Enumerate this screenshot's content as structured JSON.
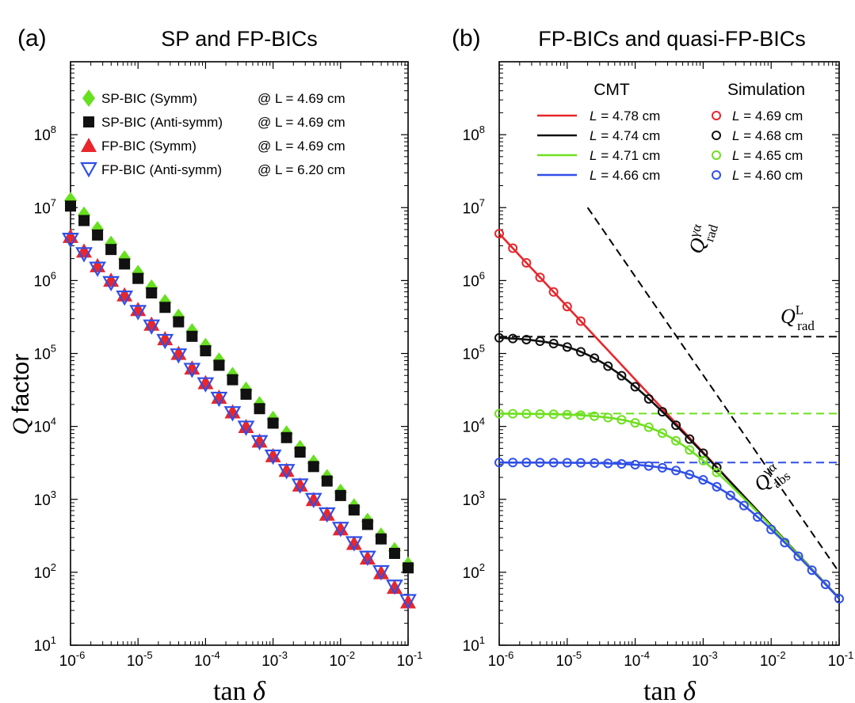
{
  "chart_data": [
    {
      "type": "scatter",
      "panel_label": "(a)",
      "title": "SP and FP-BICs",
      "xlabel": "tan δ",
      "ylabel": "Q factor",
      "xscale": "log",
      "yscale": "log",
      "xlim": [
        1e-06,
        0.1
      ],
      "ylim": [
        10,
        1000000000.0
      ],
      "x_ticks": [
        {
          "base": "10",
          "exp": "-6"
        },
        {
          "base": "10",
          "exp": "-5"
        },
        {
          "base": "10",
          "exp": "-4"
        },
        {
          "base": "10",
          "exp": "-3"
        },
        {
          "base": "10",
          "exp": "-2"
        },
        {
          "base": "10",
          "exp": "-1"
        }
      ],
      "y_ticks": [
        {
          "base": "10",
          "exp": "1"
        },
        {
          "base": "10",
          "exp": "2"
        },
        {
          "base": "10",
          "exp": "3"
        },
        {
          "base": "10",
          "exp": "4"
        },
        {
          "base": "10",
          "exp": "5"
        },
        {
          "base": "10",
          "exp": "6"
        },
        {
          "base": "10",
          "exp": "7"
        },
        {
          "base": "10",
          "exp": "8"
        }
      ],
      "legend_placement": "top-left",
      "series": [
        {
          "name": "SP-BIC (Symm)",
          "note": "@ L = 4.69 cm",
          "marker": "diamond",
          "color": "#66e01f",
          "x_range": [
            1e-06,
            0.1
          ],
          "q_at_start": 12500000,
          "q_at_end": 125
        },
        {
          "name": "SP-BIC (Anti-symm)",
          "note": "@ L = 4.69 cm",
          "marker": "square",
          "color": "#111111",
          "x_range": [
            1e-06,
            0.1
          ],
          "q_at_start": 10500000,
          "q_at_end": 115
        },
        {
          "name": "FP-BIC (Symm)",
          "note": "@ L = 4.69 cm",
          "marker": "triangle-up",
          "color": "#e8262b",
          "x_range": [
            1e-06,
            0.1
          ],
          "q_at_start": 4000000,
          "q_at_end": 39
        },
        {
          "name": "FP-BIC (Anti-symm)",
          "note": "@ L = 6.20 cm",
          "marker": "triangle-down",
          "color": "#2f4fe8",
          "x_range": [
            1e-06,
            0.1
          ],
          "q_at_start": 3600000,
          "q_at_end": 40
        }
      ]
    },
    {
      "type": "line",
      "panel_label": "(b)",
      "title": "FP-BICs and quasi-FP-BICs",
      "xlabel": "tan δ",
      "ylabel": "",
      "xscale": "log",
      "yscale": "log",
      "xlim": [
        1e-06,
        0.1
      ],
      "ylim": [
        10,
        1000000000.0
      ],
      "x_ticks": [
        {
          "base": "10",
          "exp": "-6"
        },
        {
          "base": "10",
          "exp": "-5"
        },
        {
          "base": "10",
          "exp": "-4"
        },
        {
          "base": "10",
          "exp": "-3"
        },
        {
          "base": "10",
          "exp": "-2"
        },
        {
          "base": "10",
          "exp": "-1"
        }
      ],
      "y_ticks": [
        {
          "base": "10",
          "exp": "1"
        },
        {
          "base": "10",
          "exp": "2"
        },
        {
          "base": "10",
          "exp": "3"
        },
        {
          "base": "10",
          "exp": "4"
        },
        {
          "base": "10",
          "exp": "5"
        },
        {
          "base": "10",
          "exp": "6"
        },
        {
          "base": "10",
          "exp": "7"
        },
        {
          "base": "10",
          "exp": "8"
        }
      ],
      "legend_placement": "top-right",
      "legend_headers": {
        "cmt": "CMT",
        "sim": "Simulation"
      },
      "series": [
        {
          "color": "#e8262b",
          "cmt_label": "L = 4.78 cm",
          "sim_label": "L = 4.69 cm",
          "q_rad": null,
          "sim_x_range": [
            1e-06,
            2.5e-05
          ]
        },
        {
          "color": "#111111",
          "cmt_label": "L = 4.74 cm",
          "sim_label": "L = 4.68 cm",
          "q_rad": 170000,
          "sim_x_range": [
            1e-06,
            0.0025
          ]
        },
        {
          "color": "#6ee01f",
          "cmt_label": "L = 4.71 cm",
          "sim_label": "L = 4.65 cm",
          "q_rad": 15000,
          "sim_x_range": [
            1e-06,
            0.0016
          ]
        },
        {
          "color": "#2f4fe8",
          "cmt_label": "L = 4.66 cm",
          "sim_label": "L = 4.60 cm",
          "q_rad": 3200,
          "sim_x_range": [
            1e-06,
            0.1
          ]
        }
      ],
      "q_abs_at": {
        "x": 0.1,
        "q": 44
      },
      "q_rad_gamma_line": {
        "points": [
          [
            2e-05,
            10000000.0
          ],
          [
            0.1,
            100.0
          ]
        ],
        "style": "dashed"
      },
      "annotations": {
        "q_rad_gamma": {
          "main": "Q",
          "sup": "γα",
          "sub": "rad"
        },
        "q_rad_l": {
          "main": "Q",
          "sup": "L",
          "sub": "rad"
        },
        "q_abs_gamma": {
          "main": "Q",
          "sup": "γα",
          "sub": "abs"
        }
      }
    }
  ]
}
